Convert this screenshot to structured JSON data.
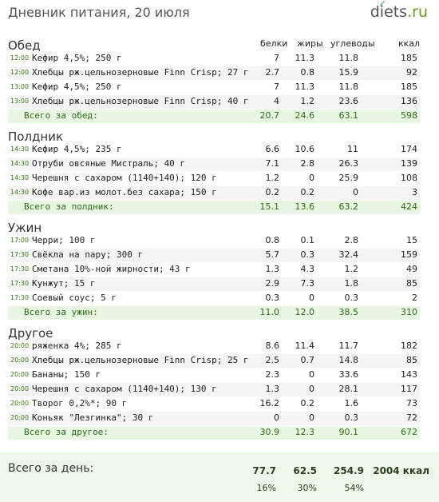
{
  "header": {
    "title": "Дневник питания, 20 июля",
    "brand_main": "diets",
    "brand_tld": ".ru"
  },
  "columns": [
    "белки",
    "жиры",
    "углеводы",
    "ккал"
  ],
  "sections": [
    {
      "title": "Обед",
      "rows": [
        {
          "time": "12:00",
          "name": "Кефир 4,5%; 250 г",
          "values": [
            "7",
            "11.3",
            "11.8",
            "185"
          ]
        },
        {
          "time": "12:00",
          "name": "Хлебцы рж.цельнозерновые Finn Crisp; 27 г",
          "values": [
            "2.7",
            "0.8",
            "15.9",
            "92"
          ]
        },
        {
          "time": "13:00",
          "name": "Кефир 4,5%; 250 г",
          "values": [
            "7",
            "11.3",
            "11.8",
            "185"
          ]
        },
        {
          "time": "13:00",
          "name": "Хлебцы рж.цельнозерновые Finn Crisp; 40 г",
          "values": [
            "4",
            "1.2",
            "23.6",
            "136"
          ]
        }
      ],
      "total": {
        "label": "Всего за обед:",
        "values": [
          "20.7",
          "24.6",
          "63.1",
          "598"
        ]
      }
    },
    {
      "title": "Полдник",
      "rows": [
        {
          "time": "14:30",
          "name": "Кефир 4,5%; 235 г",
          "values": [
            "6.6",
            "10.6",
            "11",
            "174"
          ]
        },
        {
          "time": "14:30",
          "name": "Отруби овсяные Мистраль; 40 г",
          "values": [
            "7.1",
            "2.8",
            "26.3",
            "139"
          ]
        },
        {
          "time": "14:30",
          "name": "Черешня с сахаром (1140+140); 120 г",
          "values": [
            "1.2",
            "0",
            "25.9",
            "108"
          ]
        },
        {
          "time": "14:30",
          "name": "Кофе вар.из молот.без сахара; 150 г",
          "values": [
            "0.2",
            "0.2",
            "0",
            "3"
          ]
        }
      ],
      "total": {
        "label": "Всего за полдник:",
        "values": [
          "15.1",
          "13.6",
          "63.2",
          "424"
        ]
      }
    },
    {
      "title": "Ужин",
      "rows": [
        {
          "time": "17:00",
          "name": "Черри; 100 г",
          "values": [
            "0.8",
            "0.1",
            "2.8",
            "15"
          ]
        },
        {
          "time": "17:30",
          "name": "Свёкла на пару; 300 г",
          "values": [
            "5.7",
            "0.3",
            "32.4",
            "159"
          ]
        },
        {
          "time": "17:30",
          "name": "Сметана 10%-ной жирности; 43 г",
          "values": [
            "1.3",
            "4.3",
            "1.2",
            "49"
          ]
        },
        {
          "time": "17:30",
          "name": "Кунжут; 15 г",
          "values": [
            "2.9",
            "7.3",
            "1.8",
            "85"
          ]
        },
        {
          "time": "17:30",
          "name": "Соевый соус; 5 г",
          "values": [
            "0.3",
            "0",
            "0.3",
            "2"
          ]
        }
      ],
      "total": {
        "label": "Всего за ужин:",
        "values": [
          "11.0",
          "12.0",
          "38.5",
          "310"
        ]
      }
    },
    {
      "title": "Другое",
      "rows": [
        {
          "time": "20:00",
          "name": "ряженка 4%; 285 г",
          "values": [
            "8.6",
            "11.4",
            "11.7",
            "182"
          ]
        },
        {
          "time": "20:00",
          "name": "Хлебцы рж.цельнозерновые Finn Crisp; 25 г",
          "values": [
            "2.5",
            "0.7",
            "14.8",
            "85"
          ]
        },
        {
          "time": "20:00",
          "name": "Бананы; 150 г",
          "values": [
            "2.3",
            "0",
            "33.6",
            "143"
          ]
        },
        {
          "time": "20:00",
          "name": "Черешня с сахаром (1140+140); 130 г",
          "values": [
            "1.3",
            "0",
            "28.1",
            "117"
          ]
        },
        {
          "time": "20:00",
          "name": "Творог 0,2%*; 90 г",
          "values": [
            "16.2",
            "0.2",
            "1.6",
            "73"
          ]
        },
        {
          "time": "20:00",
          "name": "Коньяк \"Лезгинка\"; 30 г",
          "values": [
            "0",
            "0",
            "0.3",
            "72"
          ]
        }
      ],
      "total": {
        "label": "Всего за другое:",
        "values": [
          "30.9",
          "12.3",
          "90.1",
          "672"
        ]
      }
    }
  ],
  "day_total": {
    "label": "Всего за день:",
    "values": [
      "77.7",
      "62.5",
      "254.9",
      "2004 ккал"
    ],
    "percents": [
      "16%",
      "30%",
      "54%"
    ]
  }
}
